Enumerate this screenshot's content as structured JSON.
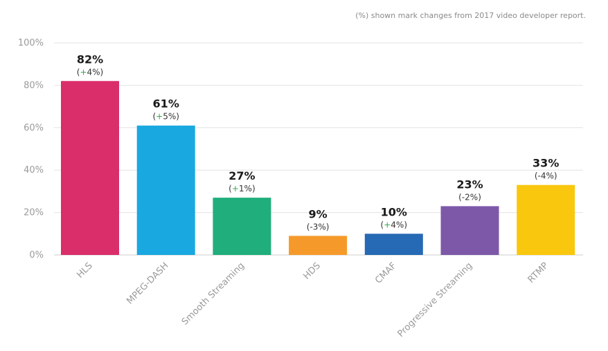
{
  "note": "(%) shown mark changes from 2017 video developer report.",
  "chart_data": {
    "type": "bar",
    "categories": [
      "HLS",
      "MPEG-DASH",
      "Smooth Streaming",
      "HDS",
      "CMAF",
      "Progressive Streaming",
      "RTMP"
    ],
    "values": [
      82,
      61,
      27,
      9,
      10,
      23,
      33
    ],
    "value_labels": [
      "82%",
      "61%",
      "27%",
      "9%",
      "10%",
      "23%",
      "33%"
    ],
    "change_labels": [
      {
        "sign": "+",
        "value": "4%"
      },
      {
        "sign": "+",
        "value": "5%"
      },
      {
        "sign": "+",
        "value": "1%"
      },
      {
        "sign": "-",
        "value": "3%"
      },
      {
        "sign": "+",
        "value": "4%"
      },
      {
        "sign": "-",
        "value": "2%"
      },
      {
        "sign": "-",
        "value": "4%"
      }
    ],
    "colors": [
      "#d92e6a",
      "#1aa8e0",
      "#1fae7c",
      "#f59a2a",
      "#2669b5",
      "#7e58a8",
      "#f9c80e"
    ],
    "positive_color": "#3aa84a",
    "negative_color": "#333333",
    "ylim": [
      0,
      100
    ],
    "yticks": [
      0,
      20,
      40,
      60,
      80,
      100
    ],
    "ytick_labels": [
      "0%",
      "20%",
      "40%",
      "60%",
      "80%",
      "100%"
    ],
    "grid": true,
    "title": "",
    "xlabel": "",
    "ylabel": ""
  }
}
